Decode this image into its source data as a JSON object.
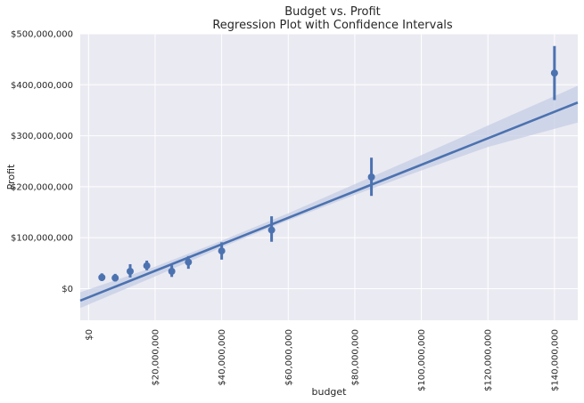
{
  "chart_data": {
    "type": "scatter",
    "title": "Budget vs. Profit",
    "subtitle": "Regression Plot with Confidence Intervals",
    "xlabel": "budget",
    "ylabel": "Profit",
    "xlim": [
      -2500000,
      147000000
    ],
    "ylim": [
      -62000000,
      500000000
    ],
    "x_ticks": [
      {
        "value": 0,
        "label": "$0"
      },
      {
        "value": 20000000,
        "label": "$20,000,000"
      },
      {
        "value": 40000000,
        "label": "$40,000,000"
      },
      {
        "value": 60000000,
        "label": "$60,000,000"
      },
      {
        "value": 80000000,
        "label": "$80,000,000"
      },
      {
        "value": 100000000,
        "label": "$100,000,000"
      },
      {
        "value": 120000000,
        "label": "$120,000,000"
      },
      {
        "value": 140000000,
        "label": "$140,000,000"
      }
    ],
    "y_ticks": [
      {
        "value": 0,
        "label": "$0"
      },
      {
        "value": 100000000,
        "label": "$100,000,000"
      },
      {
        "value": 200000000,
        "label": "$200,000,000"
      },
      {
        "value": 300000000,
        "label": "$300,000,000"
      },
      {
        "value": 400000000,
        "label": "$400,000,000"
      },
      {
        "value": 500000000,
        "label": "$500,000,000"
      }
    ],
    "points": [
      {
        "x": 4000000,
        "y": 22000000,
        "low": 15000000,
        "high": 30000000
      },
      {
        "x": 8000000,
        "y": 21000000,
        "low": 14000000,
        "high": 29000000
      },
      {
        "x": 12500000,
        "y": 34000000,
        "low": 22000000,
        "high": 48000000
      },
      {
        "x": 17500000,
        "y": 45000000,
        "low": 36000000,
        "high": 55000000
      },
      {
        "x": 25000000,
        "y": 34000000,
        "low": 23000000,
        "high": 46000000
      },
      {
        "x": 30000000,
        "y": 52000000,
        "low": 39000000,
        "high": 64000000
      },
      {
        "x": 40000000,
        "y": 74000000,
        "low": 57000000,
        "high": 91000000
      },
      {
        "x": 55000000,
        "y": 115000000,
        "low": 92000000,
        "high": 142000000
      },
      {
        "x": 85000000,
        "y": 219000000,
        "low": 182000000,
        "high": 257000000
      },
      {
        "x": 140000000,
        "y": 423000000,
        "low": 370000000,
        "high": 476000000
      }
    ],
    "regression": {
      "slope": 2.6,
      "intercept": -17000000,
      "band": [
        {
          "x": -2500000,
          "low": -38000000,
          "high": -7000000
        },
        {
          "x": 20000000,
          "low": 24000000,
          "high": 43000000
        },
        {
          "x": 40000000,
          "low": 81000000,
          "high": 94000000
        },
        {
          "x": 60000000,
          "low": 134000000,
          "high": 148000000
        },
        {
          "x": 80000000,
          "low": 184000000,
          "high": 205000000
        },
        {
          "x": 100000000,
          "low": 232000000,
          "high": 262000000
        },
        {
          "x": 120000000,
          "low": 278000000,
          "high": 320000000
        },
        {
          "x": 147000000,
          "low": 326000000,
          "high": 398000000
        }
      ]
    },
    "grid": true,
    "colors": {
      "background": "#eaeaf2",
      "grid": "#ffffff",
      "line": "#4c72b0",
      "band": "#c5cde4"
    }
  }
}
